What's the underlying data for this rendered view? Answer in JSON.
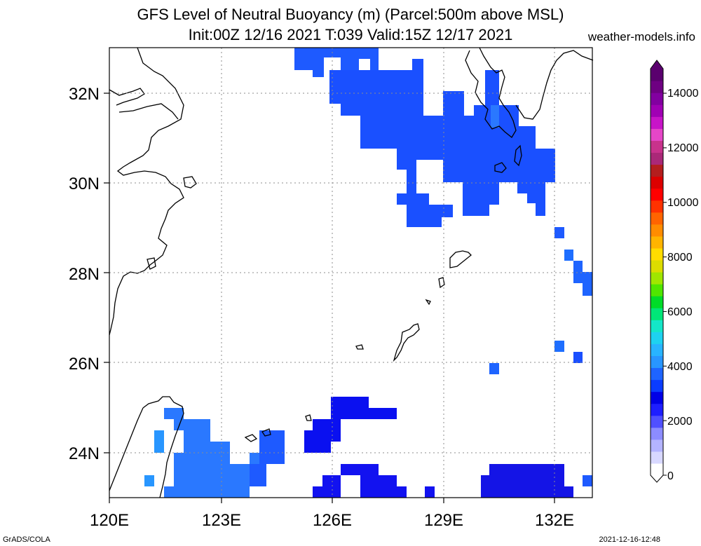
{
  "title": {
    "line1": "GFS Level of Neutral Buoyancy (m) (Parcel:500m above MSL)",
    "line2": "Init:00Z 12/16 2021 T:039 Valid:15Z 12/17 2021",
    "site": "weather-models.info"
  },
  "map": {
    "lon_range": [
      120,
      133
    ],
    "lat_range": [
      23,
      33
    ],
    "x_ticks": [
      "120E",
      "123E",
      "126E",
      "129E",
      "132E"
    ],
    "y_ticks": [
      "24N",
      "26N",
      "28N",
      "30N",
      "32N"
    ],
    "grid": true
  },
  "colorbar": {
    "labels": [
      "0",
      "2000",
      "4000",
      "6000",
      "8000",
      "10000",
      "12000",
      "14000"
    ],
    "colors": [
      "#ffffff",
      "#d8d8ff",
      "#b4b4ff",
      "#8c8cff",
      "#5050ff",
      "#1e1eff",
      "#0000e6",
      "#0a3cff",
      "#1e64ff",
      "#2896ff",
      "#28b4ff",
      "#1ed2f0",
      "#14e6c8",
      "#00e678",
      "#00dc28",
      "#50e600",
      "#a0e600",
      "#dcdc00",
      "#ffdc00",
      "#ffb400",
      "#ff8c00",
      "#ff6400",
      "#ff3200",
      "#ff0000",
      "#dc0000",
      "#b41e1e",
      "#aa2878",
      "#c8328c",
      "#e646c8",
      "#c814c8",
      "#a000b4",
      "#8200a0",
      "#6e0082",
      "#5a006e"
    ]
  },
  "footer": {
    "left": "GrADS/COLA",
    "right": "2021-12-16-12:48"
  }
}
